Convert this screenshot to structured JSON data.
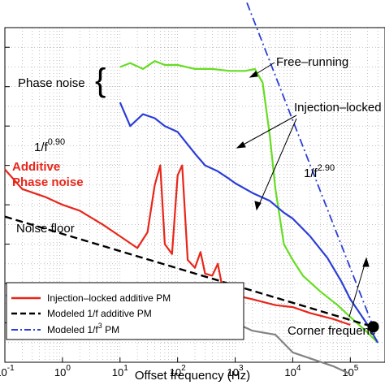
{
  "chart_data": {
    "type": "line",
    "xlabel": "Offset frequency (Hz)",
    "xscale": "log",
    "xlim": [
      0.1,
      400000
    ],
    "ylim": [
      -160,
      10
    ],
    "grid": true,
    "x_ticks": [
      {
        "v": 0.1,
        "base": "10",
        "exp": "-1"
      },
      {
        "v": 1,
        "base": "10",
        "exp": "0"
      },
      {
        "v": 10,
        "base": "10",
        "exp": "1"
      },
      {
        "v": 100,
        "base": "10",
        "exp": "2"
      },
      {
        "v": 1000,
        "base": "10",
        "exp": "3"
      },
      {
        "v": 10000,
        "base": "10",
        "exp": "4"
      },
      {
        "v": 100000,
        "base": "10",
        "exp": "5"
      }
    ],
    "series": [
      {
        "name": "Free-running",
        "color": "#66dd22",
        "x": [
          10,
          15,
          25,
          40,
          60,
          100,
          200,
          400,
          800,
          1500,
          2200,
          3000,
          4000,
          5000,
          7000,
          10000,
          15000,
          30000,
          60000,
          100000,
          200000,
          300000
        ],
        "y": [
          -10,
          -8,
          -11,
          -7,
          -9,
          -9,
          -11,
          -11,
          -12,
          -12,
          -11,
          -18,
          -45,
          -72,
          -100,
          -108,
          -116,
          -124,
          -131,
          -137,
          -145,
          -150
        ]
      },
      {
        "name": "Injection-locked",
        "color": "#2b3ed6",
        "x": [
          10,
          15,
          25,
          40,
          60,
          100,
          200,
          300,
          500,
          800,
          1000,
          2000,
          4000,
          7000,
          10000,
          20000,
          40000,
          70000,
          100000,
          200000,
          300000
        ],
        "y": [
          -28,
          -40,
          -34,
          -36,
          -40,
          -43,
          -54,
          -60,
          -63,
          -67,
          -69,
          -74,
          -78,
          -84,
          -87,
          -96,
          -107,
          -119,
          -128,
          -141,
          -150
        ]
      },
      {
        "name": "Injection-locked additive PM",
        "color": "#e8261a",
        "x": [
          0.1,
          0.2,
          0.5,
          1,
          2,
          5,
          10,
          20,
          30,
          40,
          50,
          60,
          80,
          100,
          120,
          150,
          200,
          250,
          300,
          400,
          500,
          600,
          800,
          1000,
          2000,
          5000,
          10000,
          20000,
          50000,
          100000
        ],
        "y": [
          -62,
          -72,
          -76,
          -80,
          -83,
          -90,
          -96,
          -102,
          -94,
          -70,
          -60,
          -100,
          -105,
          -65,
          -60,
          -108,
          -112,
          -104,
          -115,
          -116,
          -110,
          -122,
          -123,
          -126,
          -128,
          -131,
          -132,
          -135,
          -138,
          -141
        ]
      },
      {
        "name": "Noise floor",
        "color": "#808284",
        "x": [
          0.1,
          0.3,
          1,
          2,
          5,
          10,
          20,
          40,
          100,
          200,
          300,
          500,
          800,
          1000,
          2000,
          5000,
          10000,
          20000,
          50000,
          100000
        ],
        "y": [
          -126,
          -128,
          -128,
          -126,
          -129,
          -132,
          -137,
          -143,
          -144,
          -143,
          -148,
          -146,
          -143,
          -140,
          -144,
          -146,
          -155,
          -158,
          -162,
          -166
        ]
      },
      {
        "name": "Modeled 1/f additive PM",
        "color": "#000000",
        "dash": "dashed",
        "x": [
          0.1,
          250000
        ],
        "y": [
          -86,
          -142
        ]
      },
      {
        "name": "Modeled 1/f³ PM",
        "color": "#2b3ed6",
        "dash": "dashdot",
        "x": [
          1000,
          250000
        ],
        "y": [
          38,
          -142
        ]
      }
    ],
    "corner_point": {
      "x": 250000,
      "y": -142
    },
    "annotations": {
      "free_running": "Free–running",
      "phase_noise": "Phase noise",
      "injection_locked": "Injection–locked",
      "slope_1f": "1/f",
      "slope_1f_exp": "0.90",
      "slope_3f": "1/f",
      "slope_3f_exp": "2.90",
      "additive_line1": "Additive",
      "additive_line2": "Phase noise",
      "noise_floor": "Noise floor",
      "corner": "Corner frequenc"
    },
    "legend": {
      "placement": "bottom-left",
      "entries": [
        {
          "label": "Injection–locked additive PM",
          "color": "#e8261a",
          "style": "solid"
        },
        {
          "label": "Modeled 1/f additive PM",
          "color": "#000000",
          "style": "dashed"
        },
        {
          "label": "Modeled 1/f",
          "sup": "3",
          "tail": " PM",
          "color": "#2b3ed6",
          "style": "dashdot"
        }
      ]
    }
  }
}
